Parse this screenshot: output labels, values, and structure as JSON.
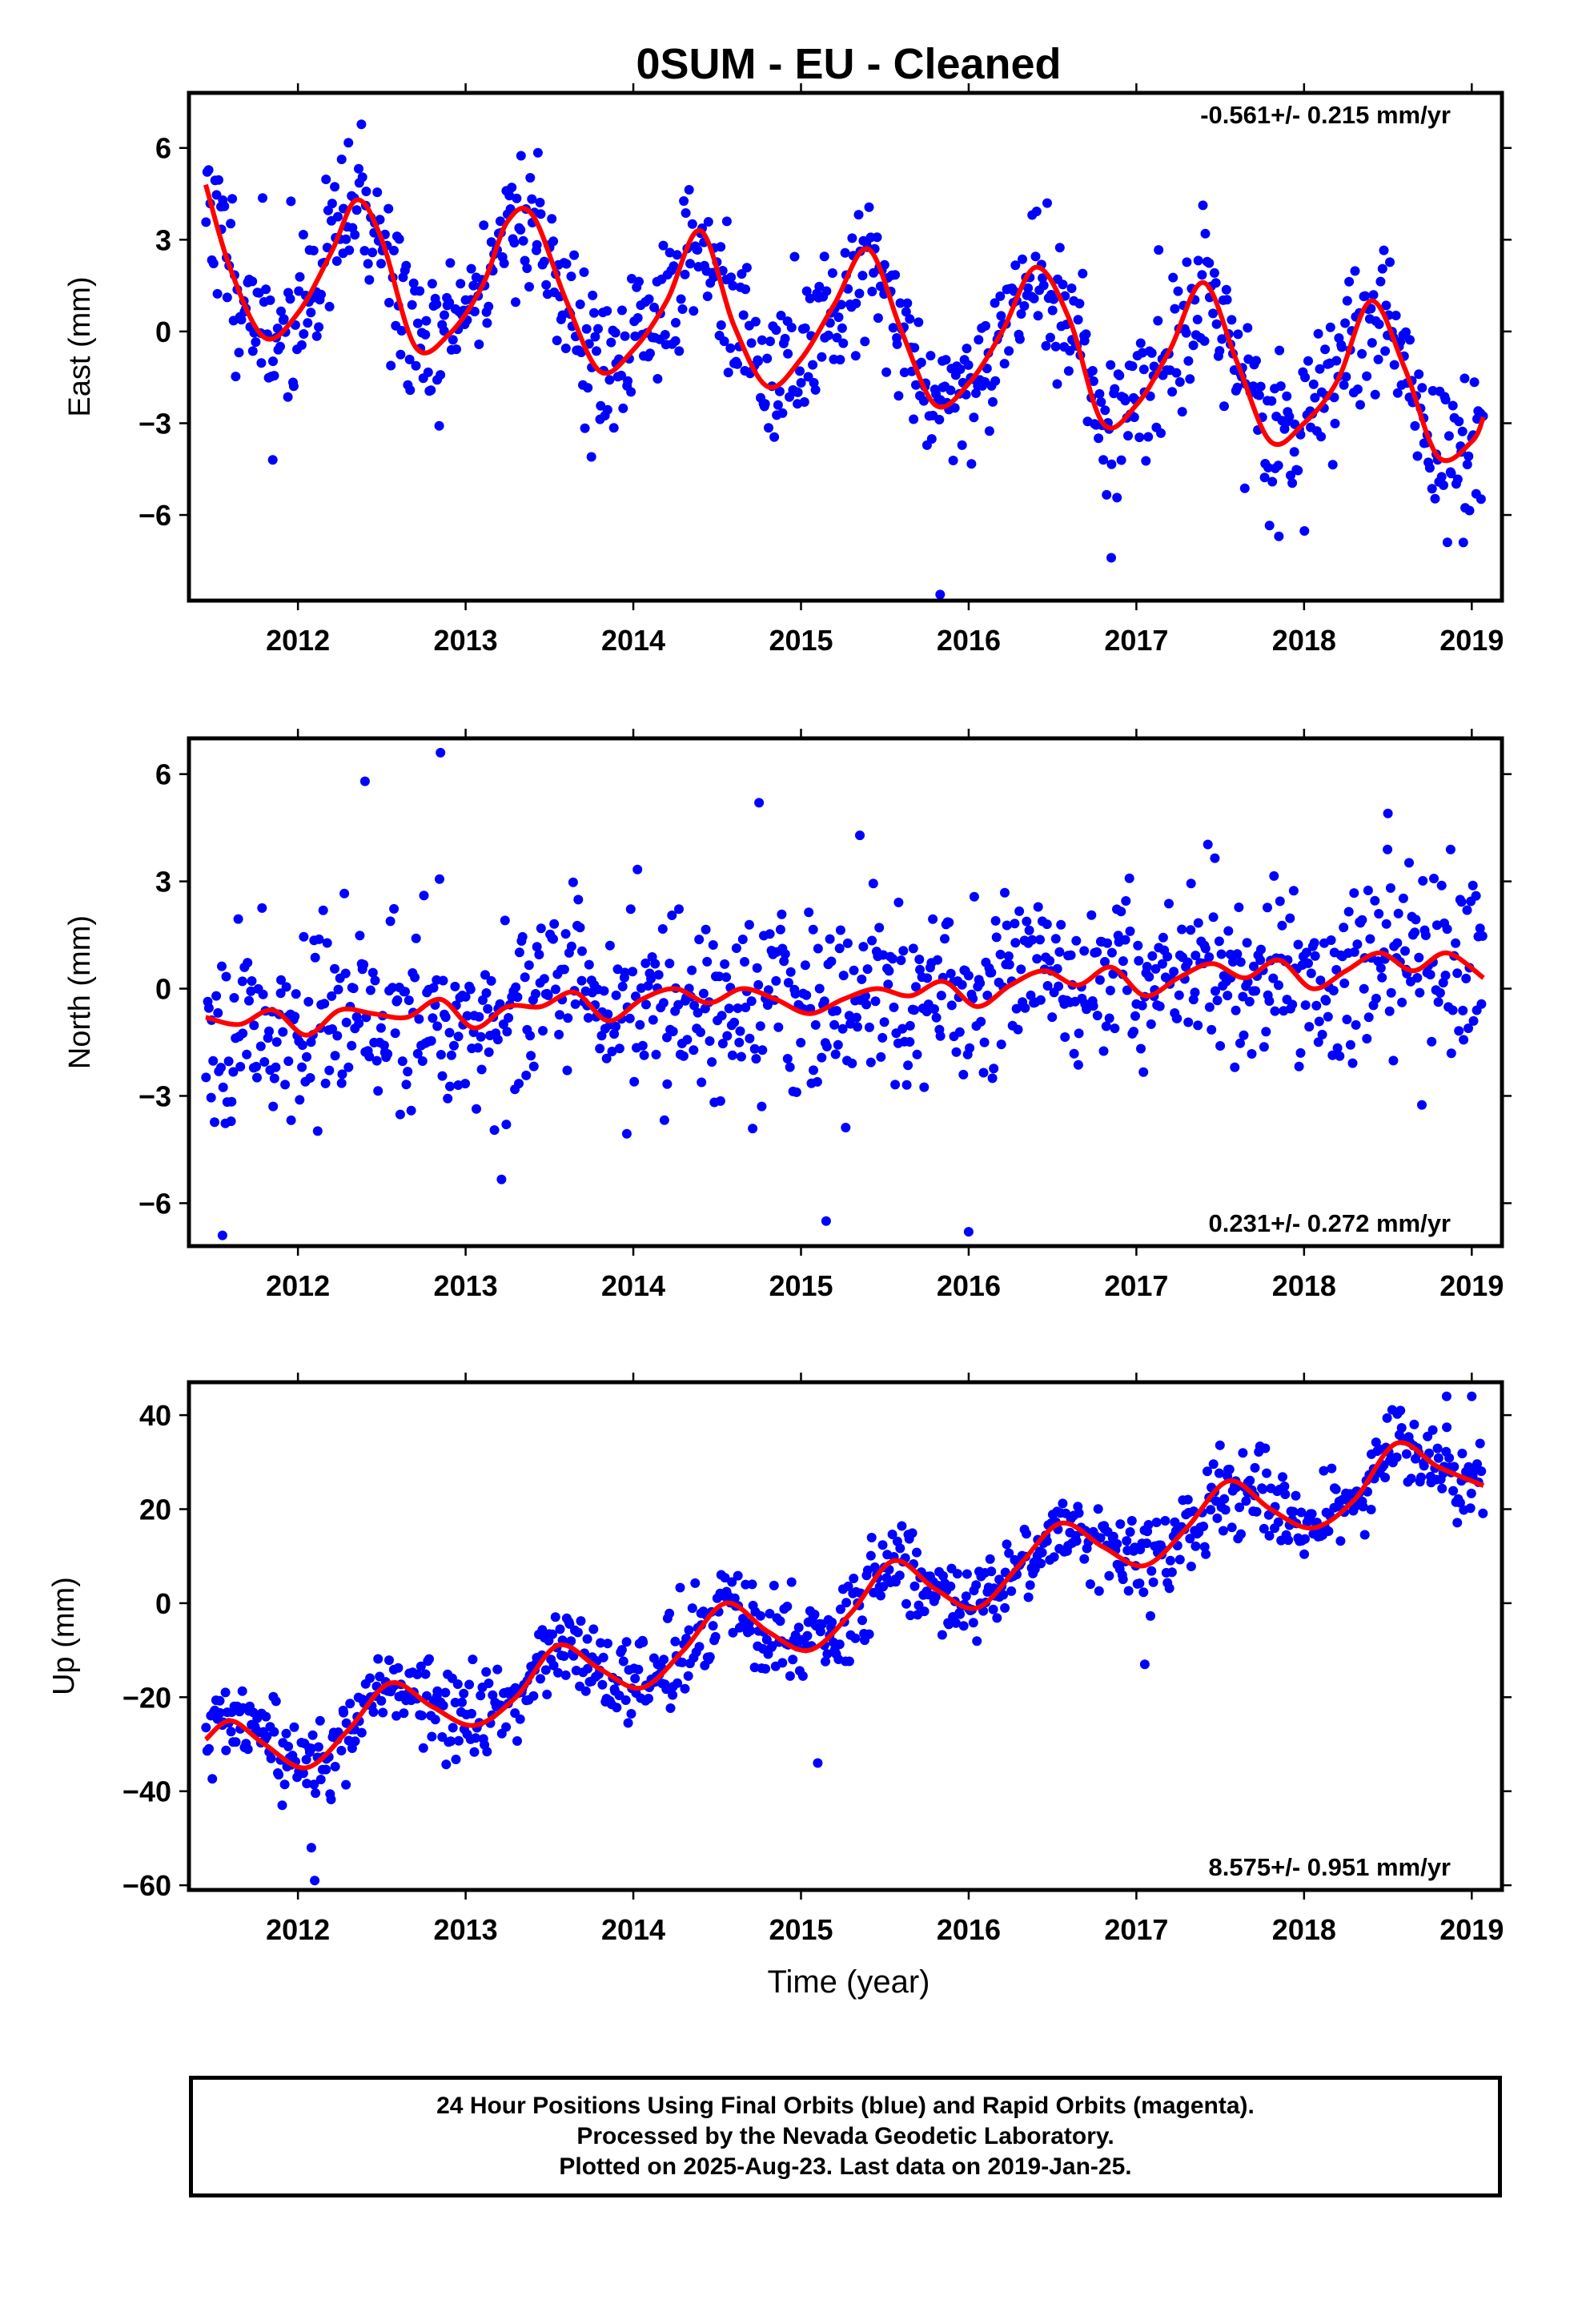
{
  "title": "0SUM  - EU - Cleaned",
  "xlabel": "Time (year)",
  "colors": {
    "points": "#0000ff",
    "fit": "#ff0000"
  },
  "footer": {
    "line1": "24 Hour Positions Using Final Orbits (blue) and Rapid Orbits (magenta).",
    "line2": "Processed by the Nevada Geodetic Laboratory.",
    "line3": "Plotted on 2025-Aug-23. Last data on 2019-Jan-25."
  },
  "chart_data": [
    {
      "type": "scatter",
      "component": "east",
      "ylabel": "East (mm)",
      "rate_text": "-0.561+/- 0.215 mm/yr",
      "rate_position": "top-right",
      "xlim": [
        2011.35,
        2019.18
      ],
      "ylim": [
        -8.8,
        7.8
      ],
      "x_ticks": [
        2012,
        2013,
        2014,
        2015,
        2016,
        2017,
        2018,
        2019
      ],
      "y_ticks": [
        -6,
        -3,
        0,
        3,
        6
      ],
      "fit_curve": {
        "color": "#ff0000",
        "x": [
          2011.45,
          2011.6,
          2011.8,
          2012.0,
          2012.2,
          2012.35,
          2012.5,
          2012.7,
          2012.9,
          2013.1,
          2013.25,
          2013.4,
          2013.6,
          2013.8,
          2014.0,
          2014.2,
          2014.4,
          2014.6,
          2014.8,
          2015.0,
          2015.2,
          2015.4,
          2015.6,
          2015.8,
          2016.0,
          2016.2,
          2016.4,
          2016.6,
          2016.8,
          2017.0,
          2017.2,
          2017.4,
          2017.6,
          2017.8,
          2018.0,
          2018.2,
          2018.4,
          2018.6,
          2018.8,
          2019.0,
          2019.07
        ],
        "y": [
          4.8,
          2.0,
          -0.2,
          0.6,
          2.6,
          4.3,
          3.0,
          -0.5,
          -0.1,
          1.5,
          3.6,
          3.8,
          1.0,
          -1.3,
          -0.6,
          1.0,
          3.3,
          0.2,
          -1.8,
          -0.9,
          0.9,
          2.7,
          0.0,
          -2.4,
          -1.7,
          0.0,
          2.1,
          0.4,
          -3.0,
          -2.4,
          -0.6,
          1.6,
          -1.0,
          -3.6,
          -3.0,
          -1.6,
          1.0,
          -1.2,
          -4.1,
          -3.6,
          -2.8
        ]
      },
      "scatter": {
        "color": "#0000ff",
        "seed": 11,
        "spread": 1.25,
        "n": 900,
        "outliers": [
          [
            2015.83,
            -8.6
          ],
          [
            2016.85,
            -7.4
          ],
          [
            2013.75,
            -4.1
          ],
          [
            2011.85,
            -4.2
          ],
          [
            2017.85,
            -6.7
          ],
          [
            2018.95,
            -6.9
          ]
        ]
      }
    },
    {
      "type": "scatter",
      "component": "north",
      "ylabel": "North (mm)",
      "rate_text": "0.231+/- 0.272 mm/yr",
      "rate_position": "bottom-right",
      "xlim": [
        2011.35,
        2019.18
      ],
      "ylim": [
        -7.2,
        7.0
      ],
      "x_ticks": [
        2012,
        2013,
        2014,
        2015,
        2016,
        2017,
        2018,
        2019
      ],
      "y_ticks": [
        -6,
        -3,
        0,
        3,
        6
      ],
      "fit_curve": {
        "color": "#ff0000",
        "x": [
          2011.45,
          2011.65,
          2011.85,
          2012.05,
          2012.25,
          2012.45,
          2012.65,
          2012.85,
          2013.05,
          2013.25,
          2013.45,
          2013.65,
          2013.85,
          2014.05,
          2014.25,
          2014.45,
          2014.65,
          2014.85,
          2015.05,
          2015.25,
          2015.45,
          2015.65,
          2015.85,
          2016.05,
          2016.25,
          2016.45,
          2016.65,
          2016.85,
          2017.05,
          2017.25,
          2017.45,
          2017.65,
          2017.85,
          2018.05,
          2018.25,
          2018.45,
          2018.65,
          2018.85,
          2019.07
        ],
        "y": [
          -0.8,
          -1.0,
          -0.6,
          -1.3,
          -0.6,
          -0.7,
          -0.8,
          -0.3,
          -1.1,
          -0.5,
          -0.5,
          -0.1,
          -0.9,
          -0.3,
          0.0,
          -0.4,
          0.0,
          -0.3,
          -0.7,
          -0.3,
          0.0,
          -0.2,
          0.2,
          -0.5,
          0.1,
          0.5,
          0.1,
          0.6,
          -0.2,
          0.3,
          0.7,
          0.3,
          0.8,
          0.0,
          0.5,
          1.0,
          0.5,
          1.0,
          0.3
        ]
      },
      "scatter": {
        "color": "#0000ff",
        "seed": 23,
        "spread": 1.3,
        "n": 900,
        "outliers": [
          [
            2011.55,
            -6.9
          ],
          [
            2012.85,
            6.6
          ],
          [
            2016.0,
            -6.8
          ],
          [
            2015.15,
            -6.5
          ],
          [
            2012.4,
            5.8
          ],
          [
            2014.75,
            5.2
          ],
          [
            2018.5,
            4.9
          ]
        ]
      }
    },
    {
      "type": "scatter",
      "component": "up",
      "ylabel": "Up (mm)",
      "rate_text": "8.575+/- 0.951 mm/yr",
      "rate_position": "bottom-right",
      "xlim": [
        2011.35,
        2019.18
      ],
      "ylim": [
        -61,
        47
      ],
      "x_ticks": [
        2012,
        2013,
        2014,
        2015,
        2016,
        2017,
        2018,
        2019
      ],
      "y_ticks": [
        -60,
        -40,
        -20,
        0,
        20,
        40
      ],
      "fit_curve": {
        "color": "#ff0000",
        "x": [
          2011.45,
          2011.6,
          2011.8,
          2012.05,
          2012.3,
          2012.55,
          2012.8,
          2013.05,
          2013.3,
          2013.55,
          2013.8,
          2014.05,
          2014.3,
          2014.55,
          2014.8,
          2015.05,
          2015.3,
          2015.55,
          2015.8,
          2016.05,
          2016.3,
          2016.55,
          2016.8,
          2017.05,
          2017.3,
          2017.55,
          2017.8,
          2018.05,
          2018.3,
          2018.55,
          2018.8,
          2019.07
        ],
        "y": [
          -29,
          -25,
          -30,
          -35,
          -27,
          -17,
          -22,
          -26,
          -20,
          -9,
          -14,
          -18,
          -10,
          0,
          -6,
          -10,
          -2,
          9,
          3,
          -1,
          8,
          17,
          12,
          8,
          16,
          26,
          20,
          16,
          22,
          34,
          29,
          25
        ]
      },
      "scatter": {
        "color": "#0000ff",
        "seed": 37,
        "spread": 4.6,
        "n": 900,
        "outliers": [
          [
            2012.1,
            -59
          ],
          [
            2012.08,
            -52
          ],
          [
            2018.85,
            44
          ],
          [
            2019.0,
            44
          ],
          [
            2015.1,
            -34
          ],
          [
            2017.05,
            -13
          ]
        ]
      }
    }
  ]
}
